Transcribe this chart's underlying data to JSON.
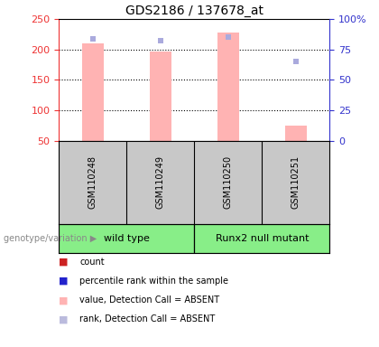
{
  "title": "GDS2186 / 137678_at",
  "samples": [
    "GSM110248",
    "GSM110249",
    "GSM110250",
    "GSM110251"
  ],
  "group_labels": [
    "wild type",
    "Runx2 null mutant"
  ],
  "bar_values": [
    210,
    196,
    228,
    75
  ],
  "rank_values": [
    217,
    214,
    220,
    180
  ],
  "ylim_left": [
    50,
    250
  ],
  "ylim_right": [
    0,
    100
  ],
  "yticks_left": [
    50,
    100,
    150,
    200,
    250
  ],
  "yticks_right": [
    0,
    25,
    50,
    75,
    100
  ],
  "ytick_labels_right": [
    "0",
    "25",
    "50",
    "75",
    "100%"
  ],
  "bar_color": "#FFB3B3",
  "rank_color": "#AAAADD",
  "left_axis_color": "#EE3333",
  "right_axis_color": "#3333CC",
  "bg_label_area": "#C8C8C8",
  "bg_group": "#88EE88",
  "legend_colors": [
    "#CC2222",
    "#2222CC",
    "#FFB3B3",
    "#BBBBDD"
  ],
  "legend_labels": [
    "count",
    "percentile rank within the sample",
    "value, Detection Call = ABSENT",
    "rank, Detection Call = ABSENT"
  ]
}
